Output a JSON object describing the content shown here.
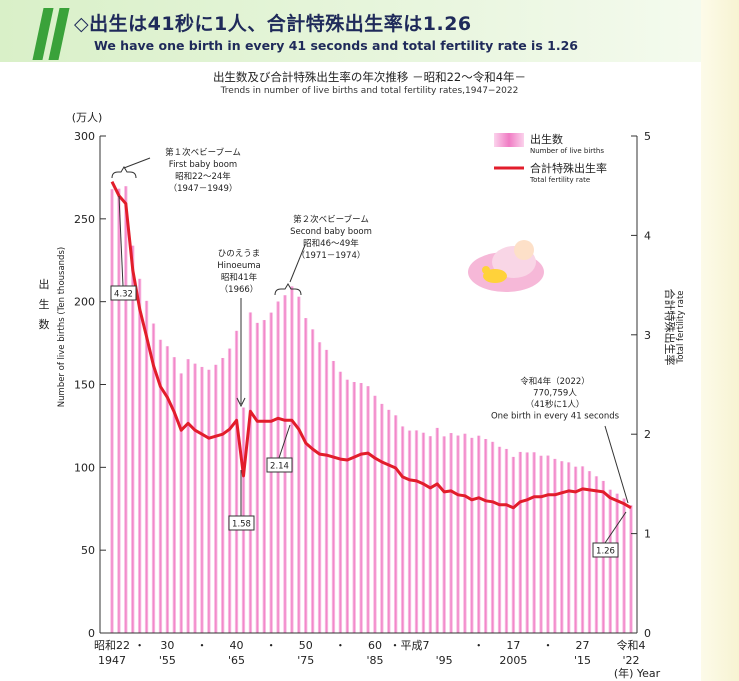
{
  "header": {
    "title": "◇出生は41秒に1人、合計特殊出生率は1.26",
    "subtitle": "We have one birth in every 41  seconds and total fertility rate is 1.26"
  },
  "colors": {
    "bar": "#f07cc4",
    "line": "#e21d2b",
    "stripe": "#3aa23a",
    "title": "#1f2a5a"
  },
  "icons": [
    "sleeping-baby-illustration"
  ],
  "chart_data": {
    "type": "bar+line",
    "title": "出生数及び合計特殊出生率の年次推移 －昭和22～令和4年－",
    "subtitle": "Trends in number of live births and total fertility rates,1947−2022",
    "x_axis": {
      "unit_label": "(年) Year",
      "tick_labels": [
        {
          "year": 1947,
          "top": "昭和22",
          "bottom": "1947"
        },
        {
          "year": 1951,
          "top": "・",
          "bottom": ""
        },
        {
          "year": 1955,
          "top": "30",
          "bottom": "'55"
        },
        {
          "year": 1960,
          "top": "・",
          "bottom": ""
        },
        {
          "year": 1965,
          "top": "40",
          "bottom": "'65"
        },
        {
          "year": 1970,
          "top": "・",
          "bottom": ""
        },
        {
          "year": 1975,
          "top": "50",
          "bottom": "'75"
        },
        {
          "year": 1980,
          "top": "・",
          "bottom": ""
        },
        {
          "year": 1985,
          "top": "60",
          "bottom": "'85"
        },
        {
          "year": 1990,
          "top": "・平成7",
          "bottom": ""
        },
        {
          "year": 1995,
          "top": "",
          "bottom": "'95"
        },
        {
          "year": 2000,
          "top": "・",
          "bottom": ""
        },
        {
          "year": 2005,
          "top": "17",
          "bottom": "2005"
        },
        {
          "year": 2010,
          "top": "・",
          "bottom": ""
        },
        {
          "year": 2015,
          "top": "27",
          "bottom": "'15"
        },
        {
          "year": 2022,
          "top": "令和4",
          "bottom": "'22"
        }
      ]
    },
    "y_left": {
      "unit": "(万人)",
      "label_ja": [
        "出",
        "生",
        "数"
      ],
      "label_en": "Number of live births (Ten thousands)",
      "range": [
        0,
        300
      ],
      "ticks": [
        0,
        50,
        100,
        150,
        200,
        250,
        300
      ]
    },
    "y_right": {
      "label_ja": "合計特殊出生率",
      "label_en": "Total fertility rate",
      "range": [
        0,
        5
      ],
      "ticks": [
        0,
        1,
        2,
        3,
        4,
        5
      ]
    },
    "legend": {
      "position": "top-right",
      "items": [
        {
          "ja": "出生数",
          "en": "Number of live births"
        },
        {
          "ja": "合計特殊出生率",
          "en": "Total fertility rate"
        }
      ]
    },
    "years": [
      1947,
      1948,
      1949,
      1950,
      1951,
      1952,
      1953,
      1954,
      1955,
      1956,
      1957,
      1958,
      1959,
      1960,
      1961,
      1962,
      1963,
      1964,
      1965,
      1966,
      1967,
      1968,
      1969,
      1970,
      1971,
      1972,
      1973,
      1974,
      1975,
      1976,
      1977,
      1978,
      1979,
      1980,
      1981,
      1982,
      1983,
      1984,
      1985,
      1986,
      1987,
      1988,
      1989,
      1990,
      1991,
      1992,
      1993,
      1994,
      1995,
      1996,
      1997,
      1998,
      1999,
      2000,
      2001,
      2002,
      2003,
      2004,
      2005,
      2006,
      2007,
      2008,
      2009,
      2010,
      2011,
      2012,
      2013,
      2014,
      2015,
      2016,
      2017,
      2018,
      2019,
      2020,
      2021,
      2022
    ],
    "series": [
      {
        "name": "出生数",
        "axis": "left",
        "values": [
          267.9,
          268.2,
          269.7,
          233.8,
          213.8,
          200.5,
          186.8,
          177.0,
          173.1,
          166.5,
          156.7,
          165.3,
          162.6,
          160.6,
          158.9,
          161.9,
          166.0,
          171.7,
          182.4,
          136.1,
          193.5,
          187.2,
          188.9,
          193.4,
          200.1,
          203.9,
          209.2,
          203.0,
          190.1,
          183.3,
          175.5,
          170.9,
          164.2,
          157.7,
          152.9,
          151.5,
          150.9,
          149.0,
          143.2,
          138.3,
          134.7,
          131.4,
          124.7,
          122.2,
          122.3,
          120.9,
          118.8,
          123.8,
          118.7,
          120.7,
          119.2,
          120.3,
          117.8,
          119.1,
          117.1,
          115.4,
          112.4,
          111.1,
          106.3,
          109.3,
          109.0,
          109.1,
          107.0,
          107.1,
          105.1,
          103.7,
          103.0,
          100.4,
          100.6,
          97.7,
          94.6,
          91.8,
          86.5,
          84.1,
          81.2,
          77.1
        ]
      },
      {
        "name": "合計特殊出生率",
        "axis": "right",
        "values": [
          4.54,
          4.4,
          4.32,
          3.65,
          3.26,
          2.98,
          2.69,
          2.48,
          2.37,
          2.22,
          2.04,
          2.11,
          2.04,
          2.0,
          1.96,
          1.98,
          2.0,
          2.05,
          2.14,
          1.58,
          2.23,
          2.13,
          2.13,
          2.13,
          2.16,
          2.14,
          2.14,
          2.05,
          1.91,
          1.85,
          1.8,
          1.79,
          1.77,
          1.75,
          1.74,
          1.77,
          1.8,
          1.81,
          1.76,
          1.72,
          1.69,
          1.66,
          1.57,
          1.54,
          1.53,
          1.5,
          1.46,
          1.5,
          1.42,
          1.43,
          1.39,
          1.38,
          1.34,
          1.36,
          1.33,
          1.32,
          1.29,
          1.29,
          1.26,
          1.32,
          1.34,
          1.37,
          1.37,
          1.39,
          1.39,
          1.41,
          1.43,
          1.42,
          1.45,
          1.44,
          1.43,
          1.42,
          1.36,
          1.33,
          1.3,
          1.26
        ]
      }
    ],
    "annotations": [
      {
        "id": "baby-boom-1",
        "lines": [
          "第１次ベビーブーム",
          "First baby boom",
          "昭和22～24年",
          "（1947－1949）"
        ]
      },
      {
        "id": "hinoeuma",
        "lines": [
          "ひのえうま",
          "Hinoeuma",
          "昭和41年",
          "（1966）"
        ]
      },
      {
        "id": "baby-boom-2",
        "lines": [
          "第２次ベビーブーム",
          "Second baby boom",
          "昭和46～49年",
          "（1971－1974）"
        ]
      },
      {
        "id": "reiwa4",
        "lines": [
          "令和4年（2022）",
          "770,759人",
          "（41秒に1人）",
          "One birth in every 41  seconds"
        ]
      }
    ],
    "value_labels": [
      {
        "year": 1949,
        "text": "4.32"
      },
      {
        "year": 1966,
        "text": "1.58"
      },
      {
        "year": 1973,
        "text": "2.14"
      },
      {
        "year": 2022,
        "text": "1.26"
      }
    ]
  }
}
